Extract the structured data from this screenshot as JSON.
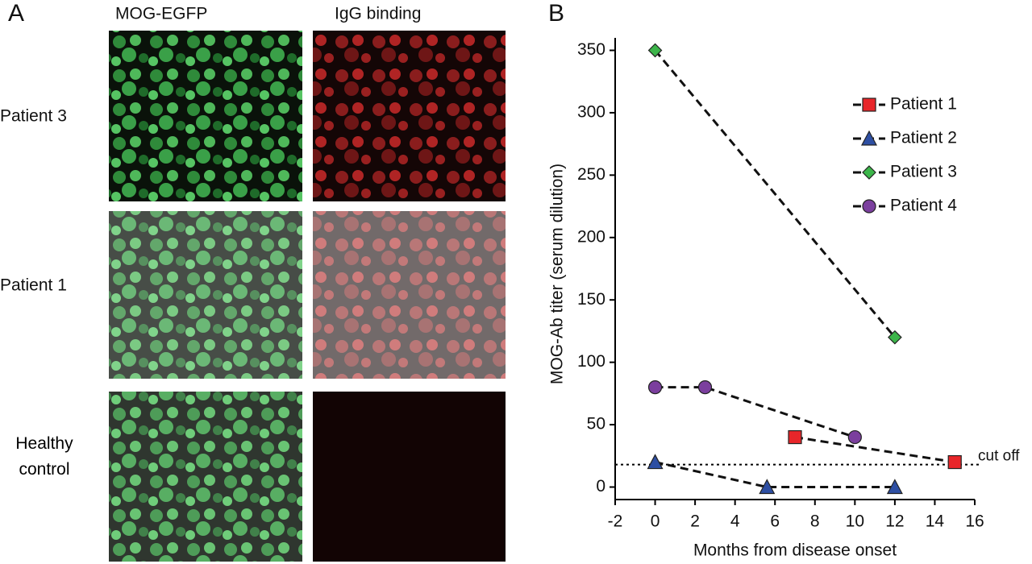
{
  "panel_a": {
    "label": "A",
    "columns": [
      "MOG-EGFP",
      "IgG binding"
    ],
    "rows": [
      "Patient 3",
      "Patient 1",
      "Healthy control"
    ]
  },
  "chart_data": {
    "type": "line",
    "panel_label": "B",
    "x_label": "Months from disease onset",
    "y_label": "MOG-Ab titer (serum dilution)",
    "xlim": [
      -2,
      16
    ],
    "xticks": [
      -2,
      0,
      2,
      4,
      6,
      8,
      10,
      12,
      14,
      16
    ],
    "ylim": [
      -10,
      360
    ],
    "yticks": [
      0,
      50,
      100,
      150,
      200,
      250,
      300,
      350
    ],
    "legend": "upper right",
    "cutoff": {
      "value": 18,
      "label": "cut off"
    },
    "series": [
      {
        "name": "Patient 1",
        "color": "#e8262a",
        "marker": "square",
        "x": [
          7,
          15
        ],
        "values": [
          40,
          20
        ]
      },
      {
        "name": "Patient 2",
        "color": "#2e4fa3",
        "marker": "triangle",
        "x": [
          0,
          5.6,
          12
        ],
        "values": [
          20,
          0,
          0
        ]
      },
      {
        "name": "Patient 3",
        "color": "#3cb54a",
        "marker": "diamond",
        "x": [
          0,
          12
        ],
        "values": [
          350,
          120
        ]
      },
      {
        "name": "Patient 4",
        "color": "#7b3f9e",
        "marker": "circle",
        "x": [
          0,
          2.5,
          10
        ],
        "values": [
          80,
          80,
          40
        ]
      }
    ]
  }
}
